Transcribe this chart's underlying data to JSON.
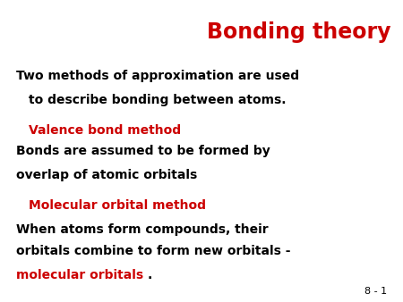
{
  "background_color": "#ffffff",
  "title": "Bonding theory",
  "title_color": "#cc0000",
  "title_fontsize": 17,
  "slide_number": "8 - 1",
  "slide_number_color": "#000000",
  "slide_number_fontsize": 8,
  "body_color": "#000000",
  "red_color": "#cc0000",
  "body_fontsize": 10,
  "section_header_fontsize": 10,
  "intro_text_line1": "Two methods of approximation are used",
  "intro_text_line2": "to describe bonding between atoms.",
  "section1_header": "Valence bond method",
  "section1_line1": "Bonds are assumed to be formed by",
  "section1_line2": "overlap of atomic orbitals",
  "section2_header": "Molecular orbital method",
  "section2_line1": "When atoms form compounds, their",
  "section2_line2": "orbitals combine to form new orbitals -",
  "section2_line3_red": "molecular orbitals",
  "section2_line3_black": "."
}
